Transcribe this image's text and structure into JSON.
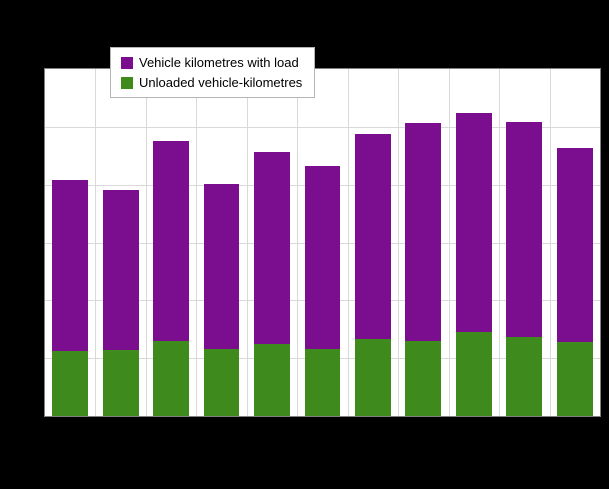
{
  "chart_data": {
    "type": "bar",
    "stacked": true,
    "categories": [
      "",
      "",
      "",
      "",
      "",
      "",
      "",
      "",
      "",
      "",
      ""
    ],
    "series": [
      {
        "name": "Vehicle kilometres with load",
        "color": "#7a0e8e",
        "values": [
          148,
          138,
          173,
          143,
          166,
          158,
          177,
          188,
          189,
          186,
          168
        ]
      },
      {
        "name": "Unloaded vehicle-kilometres",
        "color": "#3e8a1d",
        "values": [
          56,
          57,
          65,
          58,
          62,
          58,
          67,
          65,
          73,
          68,
          64
        ]
      }
    ],
    "title": "",
    "xlabel": "",
    "ylabel": "",
    "ylim": [
      0,
      300
    ],
    "grid": {
      "horizontal_divisions": 6,
      "vertical_divisions": 11
    },
    "legend_position": "top-left-overlay"
  },
  "legend": {
    "items": [
      {
        "label": "Vehicle kilometres with load",
        "color": "#7a0e8e"
      },
      {
        "label": "Unloaded vehicle-kilometres",
        "color": "#3e8a1d"
      }
    ]
  },
  "colors": {
    "background": "#000000",
    "plot_background": "#ffffff",
    "gridline": "#d9d9d9",
    "plot_border": "#808080",
    "legend_border": "#b5b5b5"
  }
}
